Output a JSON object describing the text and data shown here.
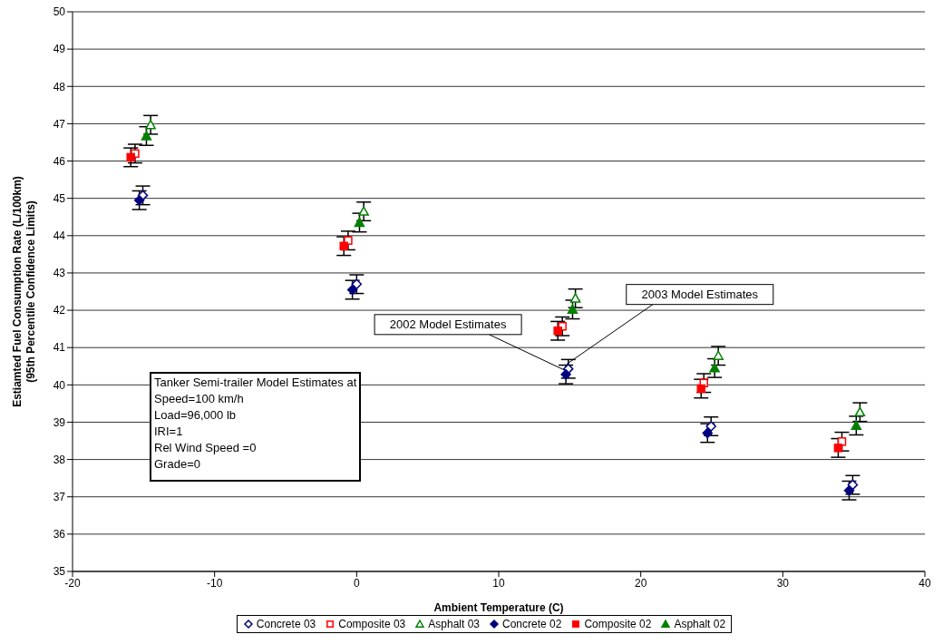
{
  "chart_data": {
    "type": "scatter",
    "xlabel": "Ambient Temperature (C)",
    "ylabel": "Estiamted Fuel Consumption Rate (L/100km)\n(95th Percentile Confidence Limits)",
    "xlim": [
      -20,
      40
    ],
    "xticks": [
      -20,
      -10,
      0,
      10,
      20,
      30,
      40
    ],
    "ylim": [
      35,
      50
    ],
    "yticks": [
      35,
      36,
      37,
      38,
      39,
      40,
      41,
      42,
      43,
      44,
      45,
      46,
      47,
      48,
      49,
      50
    ],
    "grid": "y",
    "legend": "bottom",
    "series": [
      {
        "name": "Concrete 03",
        "color": "#000080",
        "marker": "diamond",
        "x": [
          -15.05,
          0.0,
          14.9,
          24.95,
          34.92
        ],
        "values": [
          45.08,
          42.7,
          40.43,
          38.89,
          37.32
        ],
        "errors": [
          0.25,
          0.25,
          0.25,
          0.25,
          0.25
        ]
      },
      {
        "name": "Composite 03",
        "color": "#ff0000",
        "marker": "square",
        "x": [
          -15.6,
          -0.6,
          14.48,
          24.44,
          34.16
        ],
        "values": [
          46.2,
          43.87,
          41.57,
          40.05,
          38.48
        ],
        "errors": [
          0.25,
          0.25,
          0.25,
          0.25,
          0.25
        ]
      },
      {
        "name": "Asphalt 03",
        "color": "#008000",
        "marker": "triangle",
        "x": [
          -14.5,
          0.5,
          15.4,
          25.46,
          35.43
        ],
        "values": [
          46.97,
          44.65,
          42.32,
          40.78,
          39.27
        ],
        "errors": [
          0.25,
          0.25,
          0.25,
          0.25,
          0.25
        ]
      },
      {
        "name": "Concrete 02",
        "color": "#000080",
        "marker": "diamond",
        "x": [
          -15.3,
          -0.3,
          14.73,
          24.7,
          34.67
        ],
        "values": [
          44.95,
          42.55,
          40.28,
          38.71,
          37.17
        ],
        "errors": [
          0.25,
          0.25,
          0.25,
          0.25,
          0.25
        ]
      },
      {
        "name": "Composite 02",
        "color": "#ff0000",
        "marker": "square",
        "x": [
          -15.9,
          -0.9,
          14.16,
          24.25,
          33.9
        ],
        "values": [
          46.1,
          43.72,
          41.45,
          39.9,
          38.31
        ],
        "errors": [
          0.25,
          0.25,
          0.25,
          0.25,
          0.25
        ]
      },
      {
        "name": "Asphalt 02",
        "color": "#008000",
        "marker": "triangle",
        "x": [
          -14.8,
          0.2,
          15.2,
          25.2,
          35.17
        ],
        "values": [
          46.67,
          44.35,
          42.02,
          40.45,
          38.91
        ],
        "errors": [
          0.25,
          0.25,
          0.25,
          0.25,
          0.25
        ]
      }
    ],
    "annotations": [
      {
        "text": "2002 Model Estimates",
        "x": 14.73,
        "y": 40.28
      },
      {
        "text": "2003 Model Estimates",
        "x": 14.9,
        "y": 40.43
      },
      "Tanker Semi-trailer Model Estimates at\nSpeed=100 km/h\nLoad=96,000 lb\nIRI=1\nRel Wind Speed =0\nGrade=0"
    ]
  }
}
